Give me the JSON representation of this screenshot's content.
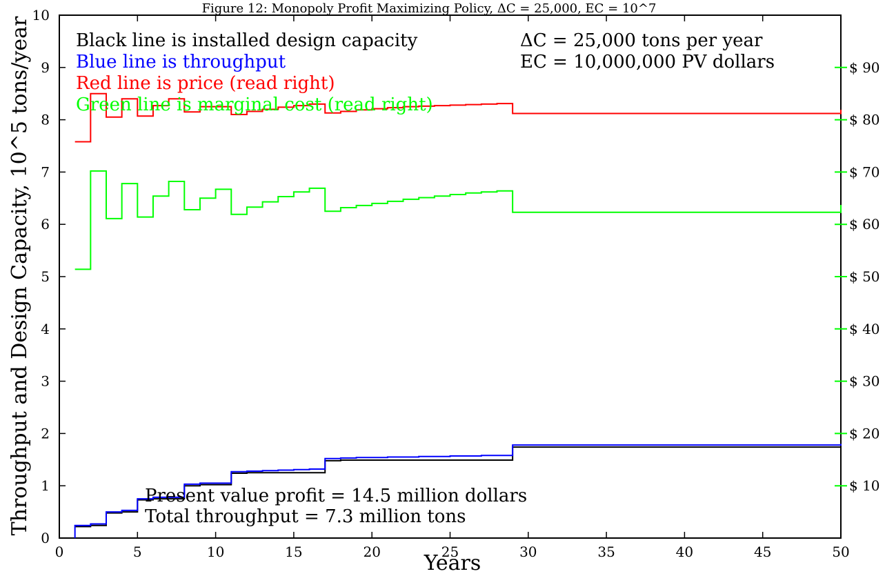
{
  "chart_data": {
    "type": "line",
    "title": "Figure 12: Monopoly Profit Maximizing Policy, ΔC = 25,000, EC = 10^7",
    "xlabel": "Years",
    "ylabel": "Throughput and Design Capacity, 10^5 tons/year",
    "xlim": [
      0,
      50
    ],
    "ylim": [
      0,
      10
    ],
    "y2lim": [
      0,
      100
    ],
    "grid": false,
    "x_ticks": [
      0,
      5,
      10,
      15,
      20,
      25,
      30,
      35,
      40,
      45,
      50
    ],
    "y_ticks": [
      0,
      1,
      2,
      3,
      4,
      5,
      6,
      7,
      8,
      9,
      10
    ],
    "y2_ticks": [
      {
        "value": 10,
        "label": "$ 10"
      },
      {
        "value": 20,
        "label": "$ 20"
      },
      {
        "value": 30,
        "label": "$ 30"
      },
      {
        "value": 40,
        "label": "$ 40"
      },
      {
        "value": 50,
        "label": "$ 50"
      },
      {
        "value": 60,
        "label": "$ 60"
      },
      {
        "value": 70,
        "label": "$ 70"
      },
      {
        "value": 80,
        "label": "$ 80"
      },
      {
        "value": 90,
        "label": "$ 90"
      }
    ],
    "series": [
      {
        "axis": "left",
        "color": "#000000",
        "step": [
          [
            1,
            0.22
          ],
          [
            2,
            0.24
          ],
          [
            3,
            0.48
          ],
          [
            4,
            0.5
          ],
          [
            5,
            0.73
          ],
          [
            6,
            0.75
          ],
          [
            8,
            1.0
          ],
          [
            9,
            1.02
          ],
          [
            11,
            1.24
          ],
          [
            12,
            1.25
          ],
          [
            17,
            1.48
          ],
          [
            18,
            1.49
          ],
          [
            29,
            1.74
          ],
          [
            50,
            1.75
          ]
        ]
      },
      {
        "axis": "left",
        "color": "#0000ff",
        "step": [
          [
            1,
            0
          ],
          [
            1,
            0.24
          ],
          [
            2,
            0.27
          ],
          [
            3,
            0.5
          ],
          [
            4,
            0.53
          ],
          [
            5,
            0.75
          ],
          [
            6,
            0.78
          ],
          [
            8,
            1.03
          ],
          [
            9,
            1.05
          ],
          [
            11,
            1.27
          ],
          [
            12,
            1.28
          ],
          [
            13,
            1.29
          ],
          [
            14,
            1.3
          ],
          [
            15,
            1.31
          ],
          [
            16,
            1.32
          ],
          [
            17,
            1.52
          ],
          [
            18,
            1.53
          ],
          [
            19,
            1.54
          ],
          [
            20,
            1.54
          ],
          [
            21,
            1.55
          ],
          [
            22,
            1.55
          ],
          [
            23,
            1.56
          ],
          [
            24,
            1.56
          ],
          [
            25,
            1.57
          ],
          [
            26,
            1.57
          ],
          [
            27,
            1.58
          ],
          [
            28,
            1.58
          ],
          [
            29,
            1.78
          ],
          [
            50,
            1.8
          ]
        ]
      },
      {
        "axis": "right",
        "color": "#ff0000",
        "step": [
          [
            1,
            75.8
          ],
          [
            2,
            85.0
          ],
          [
            3,
            80.5
          ],
          [
            4,
            84.0
          ],
          [
            5,
            80.7
          ],
          [
            6,
            82.7
          ],
          [
            7,
            84.0
          ],
          [
            8,
            81.5
          ],
          [
            9,
            82.5
          ],
          [
            11,
            81.0
          ],
          [
            12,
            81.6
          ],
          [
            13,
            82.0
          ],
          [
            14,
            82.4
          ],
          [
            15,
            82.7
          ],
          [
            16,
            83.0
          ],
          [
            17,
            81.3
          ],
          [
            18,
            81.6
          ],
          [
            19,
            81.9
          ],
          [
            20,
            82.1
          ],
          [
            21,
            82.3
          ],
          [
            22,
            82.5
          ],
          [
            23,
            82.6
          ],
          [
            24,
            82.7
          ],
          [
            25,
            82.8
          ],
          [
            26,
            82.9
          ],
          [
            27,
            83.0
          ],
          [
            28,
            83.1
          ],
          [
            29,
            81.2
          ],
          [
            50,
            81.9
          ]
        ]
      },
      {
        "axis": "right",
        "color": "#00ff00",
        "step": [
          [
            1,
            51.4
          ],
          [
            2,
            70.2
          ],
          [
            3,
            61.1
          ],
          [
            4,
            67.8
          ],
          [
            5,
            61.4
          ],
          [
            6,
            65.4
          ],
          [
            7,
            68.2
          ],
          [
            8,
            62.8
          ],
          [
            9,
            65.0
          ],
          [
            10,
            66.7
          ],
          [
            11,
            61.9
          ],
          [
            12,
            63.3
          ],
          [
            13,
            64.3
          ],
          [
            14,
            65.3
          ],
          [
            15,
            66.2
          ],
          [
            16,
            66.9
          ],
          [
            17,
            62.5
          ],
          [
            18,
            63.2
          ],
          [
            19,
            63.6
          ],
          [
            20,
            64.0
          ],
          [
            21,
            64.4
          ],
          [
            22,
            64.8
          ],
          [
            23,
            65.1
          ],
          [
            24,
            65.4
          ],
          [
            25,
            65.7
          ],
          [
            26,
            66.0
          ],
          [
            27,
            66.2
          ],
          [
            28,
            66.4
          ],
          [
            29,
            62.3
          ],
          [
            50,
            63.7
          ]
        ]
      }
    ],
    "annotations": {
      "legend_black": "Black line is installed design capacity",
      "legend_blue": "Blue line is throughput",
      "legend_red": "Red line is price (read right)",
      "legend_green": "Green line is marginal cost (read right)",
      "delta_c": "ΔC = 25,000 tons per year",
      "ec": "EC = 10,000,000 PV dollars",
      "pv_profit": "Present value profit = 14.5 million dollars",
      "total_throughput": "Total throughput = 7.3 million tons"
    }
  }
}
